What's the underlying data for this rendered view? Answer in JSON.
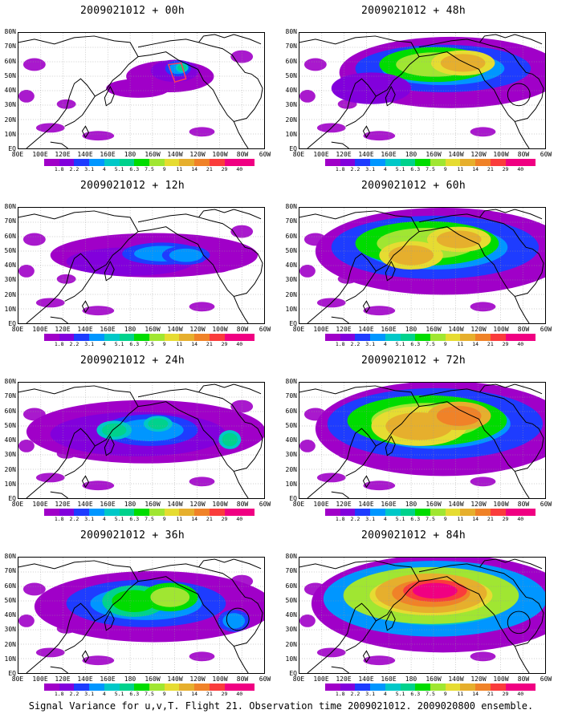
{
  "panels": [
    {
      "title": "2009021012 + 00h",
      "col": 0,
      "row": 0,
      "hours": 0
    },
    {
      "title": "2009021012 + 48h",
      "col": 1,
      "row": 0,
      "hours": 48
    },
    {
      "title": "2009021012 + 12h",
      "col": 0,
      "row": 1,
      "hours": 12
    },
    {
      "title": "2009021012 + 60h",
      "col": 1,
      "row": 1,
      "hours": 60
    },
    {
      "title": "2009021012 + 24h",
      "col": 0,
      "row": 2,
      "hours": 24
    },
    {
      "title": "2009021012 + 72h",
      "col": 1,
      "row": 2,
      "hours": 72
    },
    {
      "title": "2009021012 + 36h",
      "col": 0,
      "row": 3,
      "hours": 36
    },
    {
      "title": "2009021012 + 84h",
      "col": 1,
      "row": 3,
      "hours": 84
    }
  ],
  "lat_labels": [
    "80N",
    "70N",
    "60N",
    "50N",
    "40N",
    "30N",
    "20N",
    "10N",
    "EQ"
  ],
  "lon_labels": [
    "80E",
    "100E",
    "120E",
    "140E",
    "160E",
    "180",
    "160W",
    "140W",
    "120W",
    "100W",
    "80W",
    "60W"
  ],
  "colorbar": {
    "labels": [
      "1.8",
      "2.2",
      "3.1",
      "4",
      "5.1",
      "6.3",
      "7.5",
      "9",
      "11",
      "14",
      "21",
      "29",
      "40"
    ],
    "colors": [
      "#a000c8",
      "#8200dc",
      "#1e3cff",
      "#0096ff",
      "#00c8c8",
      "#00d28c",
      "#00dc00",
      "#a0e632",
      "#e6dc32",
      "#e6af2d",
      "#f08228",
      "#fa3c3c",
      "#f00082"
    ]
  },
  "caption": "Signal Variance for u,v,T. Flight 21. Observation time 2009021012. 2009020800 ensemble."
}
